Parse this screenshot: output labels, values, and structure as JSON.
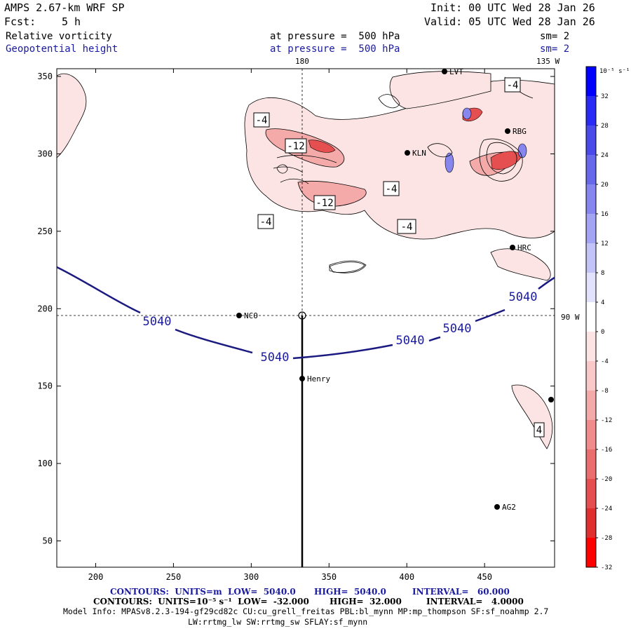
{
  "header": {
    "model": "AMPS 2.67-km WRF SP",
    "init": "Init: 00 UTC Wed 28 Jan 26",
    "fcst_label": "Fcst:",
    "fcst_value": "5 h",
    "valid": "Valid: 05 UTC Wed 28 Jan 26",
    "field1": "Relative vorticity",
    "field1_level": "at pressure =  500 hPa",
    "field1_sm": "sm= 2",
    "field2": "Geopotential height",
    "field2_level": "at pressure =  500 hPa",
    "field2_sm": "sm= 2"
  },
  "map": {
    "lon_top_180": "180",
    "lon_top_135w": "135 W",
    "lon_right_90w": "90 W",
    "stations": [
      "LVT",
      "RBG",
      "KLN",
      "HRC",
      "NCO",
      "Henry",
      "AG2"
    ]
  },
  "colorbar": {
    "unit_label": "10⁻⁵ s⁻¹",
    "tick_labels": [
      "32",
      "28",
      "24",
      "20",
      "16",
      "12",
      "8",
      "4",
      "0",
      "-4",
      "-8",
      "-12",
      "-16",
      "-20",
      "-24",
      "-28",
      "-32"
    ],
    "colors": [
      "#0000ff",
      "#2a2af5",
      "#4a4aeb",
      "#6868ea",
      "#8686ee",
      "#a4a4f4",
      "#c3c3f8",
      "#e2e2fc",
      "#ffffff",
      "#fce4e4",
      "#f9c8c8",
      "#f5aaaa",
      "#f08c8c",
      "#eb6e6e",
      "#e64f4f",
      "#e02f2f",
      "#ff0000"
    ]
  },
  "chart_data": {
    "type": "contour-map",
    "x_ticks": [
      "200",
      "250",
      "300",
      "350",
      "400",
      "450"
    ],
    "y_ticks": [
      "350",
      "300",
      "250",
      "200",
      "150",
      "100",
      "50"
    ],
    "xlim": [
      175,
      495
    ],
    "ylim": [
      33,
      355
    ],
    "height_contour_labels": [
      "5040",
      "5040",
      "5040",
      "5040",
      "5040"
    ],
    "vorticity_labels": [
      "-4",
      "-12",
      "-12",
      "-4",
      "-4",
      "-4",
      "-4",
      "4"
    ]
  },
  "footer": {
    "line1_a": "CONTOURS:  UNITS=m  LOW=  5040.0",
    "line1_b": "HIGH=  5040.0",
    "line1_c": "INTERVAL=   60.000",
    "line2_a": "CONTOURS:  UNITS=10⁻⁵ s⁻¹  LOW=  -32.000",
    "line2_b": "HIGH=  32.000",
    "line2_c": "INTERVAL=   4.0000",
    "model_info": "Model Info: MPASv8.2.3-194-gf29cd82c CU:cu_grell_freitas PBL:bl_mynn MP:mp_thompson SF:sf_noahmp 2.7",
    "model_info2": "LW:rrtmg_lw SW:rrtmg_sw SFLAY:sf_mynn"
  }
}
